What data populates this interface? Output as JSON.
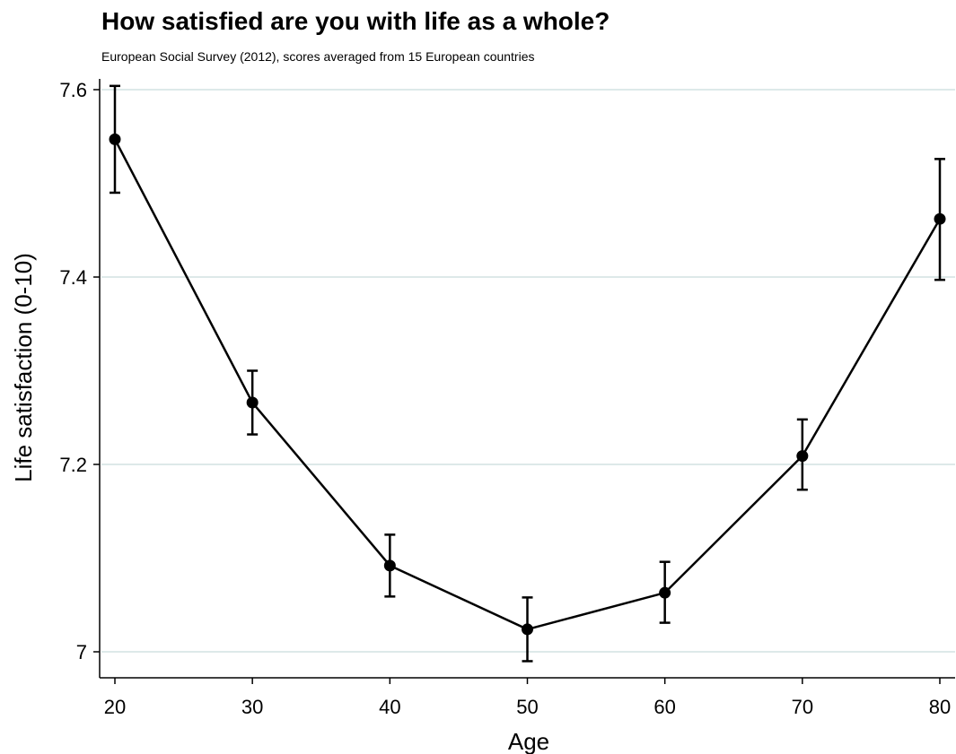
{
  "chart_data": {
    "type": "line",
    "title": "How satisfied are you with life as a whole?",
    "subtitle": "European Social Survey (2012), scores averaged from 15 European countries",
    "xlabel": "Age",
    "ylabel": "Life satisfaction (0-10)",
    "x": [
      20,
      30,
      40,
      50,
      60,
      70,
      80
    ],
    "series": [
      {
        "values": [
          7.547,
          7.266,
          7.092,
          7.024,
          7.063,
          7.209,
          7.462
        ],
        "error_low": [
          7.49,
          7.232,
          7.059,
          6.99,
          7.031,
          7.173,
          7.397
        ],
        "error_high": [
          7.604,
          7.3,
          7.125,
          7.058,
          7.096,
          7.248,
          7.526
        ]
      }
    ],
    "xticks": [
      "20",
      "30",
      "40",
      "50",
      "60",
      "70",
      "80"
    ],
    "yticks": [
      "7",
      "7.2",
      "7.4",
      "7.6"
    ],
    "xlim": [
      20,
      80
    ],
    "ylim": [
      7,
      7.6
    ],
    "grid": "horizontal",
    "line_color": "#000000",
    "grid_color": "#dde9e9"
  }
}
